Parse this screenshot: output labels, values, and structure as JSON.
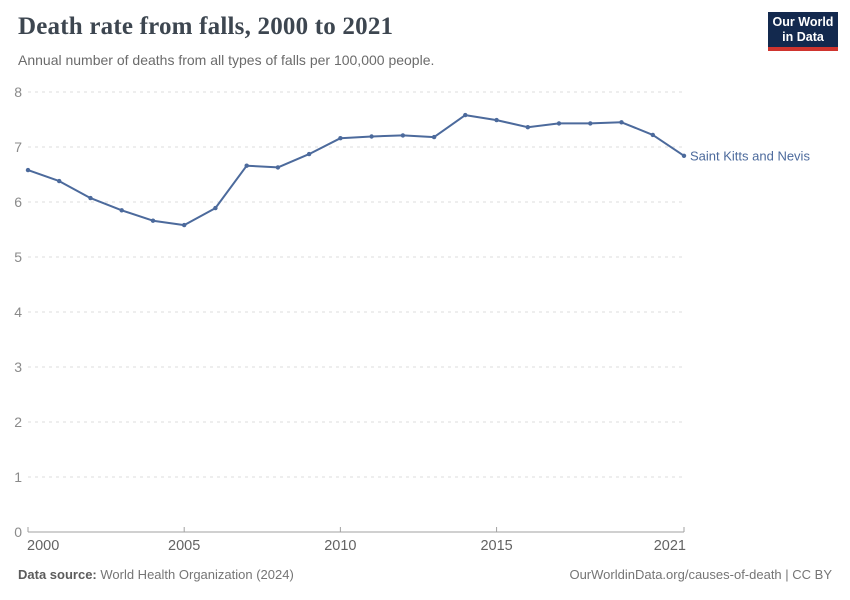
{
  "header": {
    "title": "Death rate from falls, 2000 to 2021",
    "subtitle": "Annual number of deaths from all types of falls per 100,000 people.",
    "logo": {
      "line1": "Our World",
      "line2": "in Data",
      "bg_color": "#13294e",
      "bar_color": "#cf342e"
    }
  },
  "chart_data": {
    "type": "line",
    "title": "Death rate from falls, 2000 to 2021",
    "xlabel": "",
    "ylabel": "",
    "x": [
      2000,
      2001,
      2002,
      2003,
      2004,
      2005,
      2006,
      2007,
      2008,
      2009,
      2010,
      2011,
      2012,
      2013,
      2014,
      2015,
      2016,
      2017,
      2018,
      2019,
      2020,
      2021
    ],
    "series": [
      {
        "name": "Saint Kitts and Nevis",
        "color": "#4C6A9C",
        "values": [
          6.58,
          6.38,
          6.07,
          5.85,
          5.66,
          5.58,
          5.89,
          6.66,
          6.63,
          6.87,
          7.16,
          7.19,
          7.21,
          7.18,
          7.58,
          7.49,
          7.36,
          7.43,
          7.43,
          7.45,
          7.22,
          6.84
        ]
      }
    ],
    "ylim": [
      0,
      8
    ],
    "y_ticks": [
      0,
      1,
      2,
      3,
      4,
      5,
      6,
      7,
      8
    ],
    "x_ticks": [
      2000,
      2005,
      2010,
      2015,
      2021
    ],
    "grid": "horizontal-dashed",
    "legend_position": "end-of-line-label",
    "grid_color": "#dedede",
    "axis_color": "#a1a1a1",
    "y_tick_label_color": "#8a8a8a",
    "x_tick_label_color": "#636363"
  },
  "footer": {
    "source_label": "Data source:",
    "source_text": " World Health Organization (2024)",
    "right_text": "OurWorldinData.org/causes-of-death | CC BY"
  }
}
